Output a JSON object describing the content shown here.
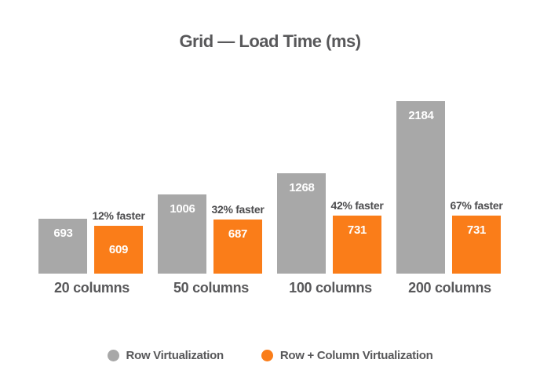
{
  "title": "Grid — Load Time (ms)",
  "colors": {
    "row_virtualization": "#A8A8A8",
    "row_column_virtualization": "#FA7D19",
    "label_text": "#58585A",
    "value_text": "#FFFFFF",
    "background": "#FFFFFF"
  },
  "legend": {
    "items": [
      {
        "label": "Row Virtualization",
        "color": "#A8A8A8"
      },
      {
        "label": "Row + Column Virtualization",
        "color": "#FA7D19"
      }
    ]
  },
  "chart_data": {
    "type": "bar",
    "title": "Grid — Load Time (ms)",
    "categories": [
      "20 columns",
      "50 columns",
      "100 columns",
      "200 columns"
    ],
    "series": [
      {
        "name": "Row Virtualization",
        "color": "#A8A8A8",
        "values": [
          693,
          1006,
          1268,
          2184
        ]
      },
      {
        "name": "Row + Column Virtualization",
        "color": "#FA7D19",
        "values": [
          609,
          687,
          731,
          731
        ]
      }
    ],
    "annotations": [
      {
        "category": "20 columns",
        "text": "12% faster"
      },
      {
        "category": "50 columns",
        "text": "32% faster"
      },
      {
        "category": "100 columns",
        "text": "42% faster"
      },
      {
        "category": "200 columns",
        "text": "67% faster"
      }
    ],
    "ylim": [
      0,
      2184
    ],
    "grid": false,
    "axes_visible": false,
    "value_labels": "inside-top",
    "legend_position": "bottom"
  }
}
